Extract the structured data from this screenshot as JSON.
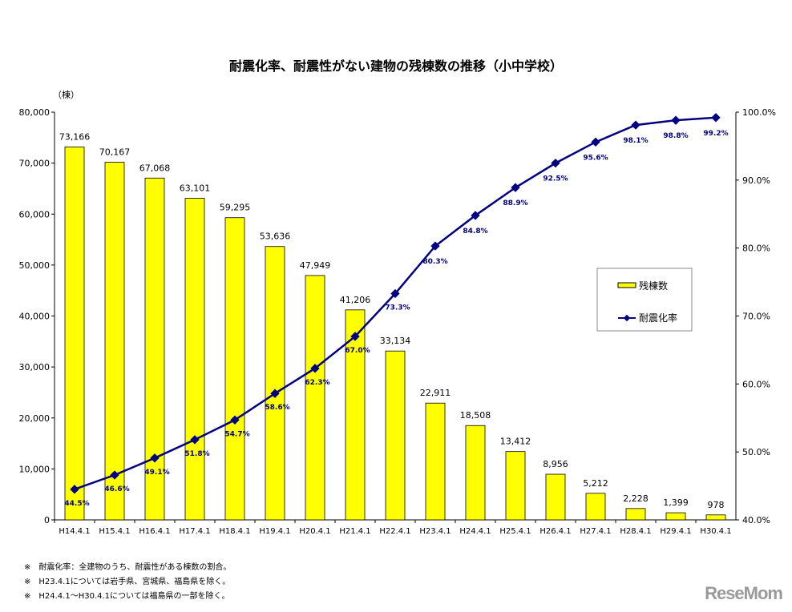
{
  "chart_data": {
    "type": "bar+line",
    "title": "耐震化率、耐震性がない建物の残棟数の推移（小中学校）",
    "ylabel": "（棟）",
    "categories": [
      "H14.4.1",
      "H15.4.1",
      "H16.4.1",
      "H17.4.1",
      "H18.4.1",
      "H19.4.1",
      "H20.4.1",
      "H21.4.1",
      "H22.4.1",
      "H23.4.1",
      "H24.4.1",
      "H25.4.1",
      "H26.4.1",
      "H27.4.1",
      "H28.4.1",
      "H29.4.1",
      "H30.4.1"
    ],
    "series": [
      {
        "name": "残棟数",
        "type": "bar",
        "axis": "left",
        "color": "#ffff00",
        "values": [
          73166,
          70167,
          67068,
          63101,
          59295,
          53636,
          47949,
          41206,
          33134,
          22911,
          18508,
          13412,
          8956,
          5212,
          2228,
          1399,
          978
        ],
        "labels": [
          "73,166",
          "70,167",
          "67,068",
          "63,101",
          "59,295",
          "53,636",
          "47,949",
          "41,206",
          "33,134",
          "22,911",
          "18,508",
          "13,412",
          "8,956",
          "5,212",
          "2,228",
          "1,399",
          "978"
        ]
      },
      {
        "name": "耐震化率",
        "type": "line",
        "axis": "right",
        "color": "#000080",
        "values": [
          44.5,
          46.6,
          49.1,
          51.8,
          54.7,
          58.6,
          62.3,
          67.0,
          73.3,
          80.3,
          84.8,
          88.9,
          92.5,
          95.6,
          98.1,
          98.8,
          99.2
        ],
        "labels": [
          "44.5%",
          "46.6%",
          "49.1%",
          "51.8%",
          "54.7%",
          "58.6%",
          "62.3%",
          "67.0%",
          "73.3%",
          "80.3%",
          "84.8%",
          "88.9%",
          "92.5%",
          "95.6%",
          "98.1%",
          "98.8%",
          "99.2%"
        ]
      }
    ],
    "ylim": [
      0,
      80000
    ],
    "y_ticks": [
      "0",
      "10,000",
      "20,000",
      "30,000",
      "40,000",
      "50,000",
      "60,000",
      "70,000",
      "80,000"
    ],
    "y2lim": [
      40,
      100
    ],
    "y2_ticks": [
      "40.0%",
      "50.0%",
      "60.0%",
      "70.0%",
      "80.0%",
      "90.0%",
      "100.0%"
    ],
    "legend": "right-middle",
    "grid": false
  },
  "notes": [
    "※　耐震化率：全建物のうち、耐震性がある棟数の割合。",
    "※　H23.4.1については岩手県、宮城県、福島県を除く。",
    "※　H24.4.1～H30.4.1については福島県の一部を除く。"
  ],
  "logo": "ReseMom"
}
